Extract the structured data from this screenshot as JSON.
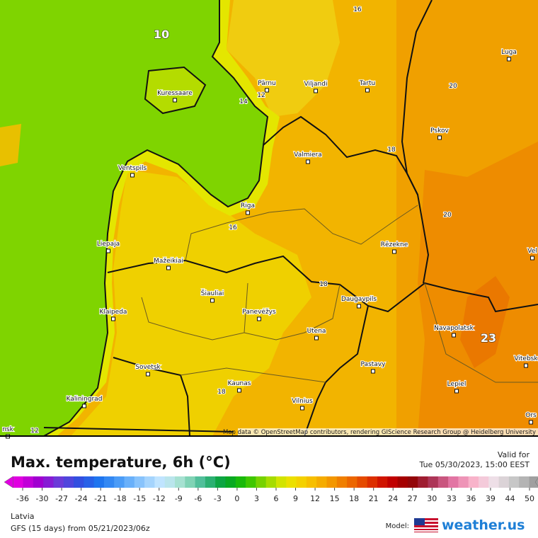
{
  "map": {
    "cities": [
      "Kuressaare",
      "Pärnu",
      "Viljandi",
      "Tartu",
      "Luga",
      "Pskov",
      "Valmiera",
      "Ventspils",
      "Riga",
      "Liepaja",
      "Mažeikiai",
      "Rēzekne",
      "Šiauliai",
      "Klaipeda",
      "Panevėžys",
      "Daugavpils",
      "Navapolatsk",
      "Utena",
      "Vitebsk",
      "Sovetsk",
      "Pastavy",
      "Kaunas",
      "Lepiel",
      "Kaliningrad",
      "Vilnius",
      "Vel",
      "Ors",
      "nsk"
    ],
    "contour_labels": [
      10,
      16,
      12,
      14,
      20,
      18,
      20,
      16,
      18,
      23,
      18,
      12
    ],
    "attribution": "Map data © OpenStreetMap contributors, rendering GIScience Research Group @ Heidelberg University"
  },
  "legend": {
    "title": "Max. temperature, 6h (°C)",
    "valid_label": "Valid for",
    "valid_time": "Tue 05/30/2023, 15:00 EEST",
    "scale_ticks": [
      -36,
      -30,
      -27,
      -24,
      -21,
      -18,
      -15,
      -12,
      -9,
      -6,
      -3,
      0,
      3,
      6,
      9,
      12,
      15,
      18,
      21,
      24,
      27,
      30,
      33,
      36,
      39,
      44,
      50
    ],
    "region": "Latvia",
    "model_run": "GFS (15 days) from 05/21/2023/06z",
    "model_label": "Model:",
    "brand": "weather.us"
  }
}
